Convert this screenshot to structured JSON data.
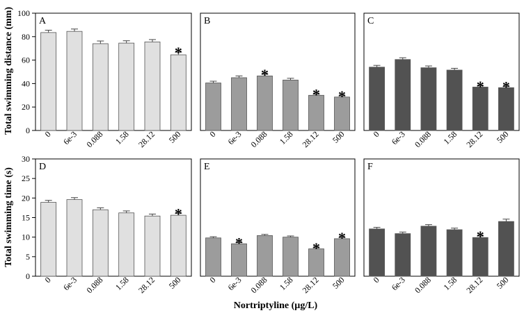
{
  "figure": {
    "top_ylabel": "Total swimming distance (mm)",
    "bottom_ylabel": "Total swimming time (s)",
    "xlabel": "Nortriptyline (µg/L)",
    "significance_marker": "*"
  },
  "chart_data": [
    {
      "type": "bar",
      "panel": "A",
      "row": "top",
      "categories": [
        "0",
        "6e-3",
        "0.088",
        "1.58",
        "28.12",
        "500"
      ],
      "values": [
        83.5,
        84.5,
        74,
        74.5,
        75.5,
        64.5
      ],
      "errors": [
        2.0,
        2.0,
        2.3,
        2.0,
        2.0,
        2.3
      ],
      "significant": [
        false,
        false,
        false,
        false,
        false,
        true
      ],
      "ylim": [
        0,
        100
      ],
      "yticks": [
        0,
        20,
        40,
        60,
        80,
        100
      ],
      "ylabel": "Total swimming distance (mm)",
      "color": "#e0e0e0"
    },
    {
      "type": "bar",
      "panel": "B",
      "row": "top",
      "categories": [
        "0",
        "6e-3",
        "0.088",
        "1.58",
        "28.12",
        "500"
      ],
      "values": [
        40.5,
        45,
        46.5,
        43,
        30,
        28.5
      ],
      "errors": [
        1.5,
        1.5,
        1.5,
        1.5,
        1.0,
        1.0
      ],
      "significant": [
        false,
        false,
        true,
        false,
        true,
        true
      ],
      "ylim": [
        0,
        100
      ],
      "color": "#9c9c9c"
    },
    {
      "type": "bar",
      "panel": "C",
      "row": "top",
      "categories": [
        "0",
        "6e-3",
        "0.088",
        "1.58",
        "28.12",
        "500"
      ],
      "values": [
        54,
        60.5,
        53.5,
        51.5,
        37,
        36.5
      ],
      "errors": [
        1.5,
        1.5,
        1.5,
        1.5,
        1.0,
        1.0
      ],
      "significant": [
        false,
        false,
        false,
        false,
        true,
        true
      ],
      "ylim": [
        0,
        100
      ],
      "color": "#525252"
    },
    {
      "type": "bar",
      "panel": "D",
      "row": "bottom",
      "categories": [
        "0",
        "6e-3",
        "0.088",
        "1.58",
        "28.12",
        "500"
      ],
      "values": [
        18.9,
        19.6,
        17,
        16.2,
        15.4,
        15.6
      ],
      "errors": [
        0.5,
        0.5,
        0.5,
        0.5,
        0.5,
        0.5
      ],
      "significant": [
        false,
        false,
        false,
        false,
        false,
        true
      ],
      "ylim": [
        0,
        30
      ],
      "yticks": [
        0,
        5,
        10,
        15,
        20,
        25,
        30
      ],
      "ylabel": "Total swimming time (s)",
      "color": "#e0e0e0"
    },
    {
      "type": "bar",
      "panel": "E",
      "row": "bottom",
      "categories": [
        "0",
        "6e-3",
        "0.088",
        "1.58",
        "28.12",
        "500"
      ],
      "values": [
        9.8,
        8.3,
        10.4,
        10,
        7,
        9.6
      ],
      "errors": [
        0.3,
        0.3,
        0.3,
        0.3,
        0.3,
        0.3
      ],
      "significant": [
        false,
        true,
        false,
        false,
        true,
        true
      ],
      "ylim": [
        0,
        30
      ],
      "color": "#9c9c9c"
    },
    {
      "type": "bar",
      "panel": "F",
      "row": "bottom",
      "categories": [
        "0",
        "6e-3",
        "0.088",
        "1.58",
        "28.12",
        "500"
      ],
      "values": [
        12.1,
        10.9,
        12.8,
        11.9,
        9.9,
        14
      ],
      "errors": [
        0.4,
        0.4,
        0.4,
        0.4,
        0.4,
        0.6
      ],
      "significant": [
        false,
        false,
        false,
        false,
        true,
        false
      ],
      "ylim": [
        0,
        30
      ],
      "color": "#525252"
    }
  ]
}
